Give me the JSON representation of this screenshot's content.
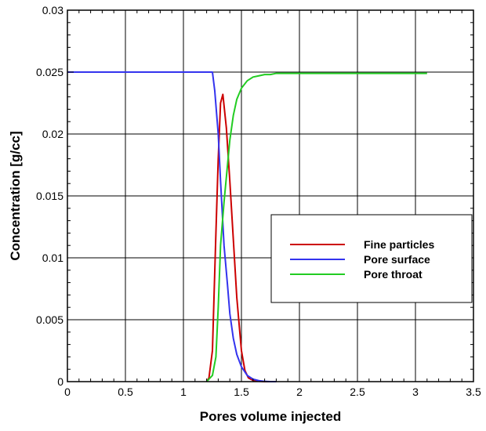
{
  "chart_data": {
    "type": "line",
    "xlabel": "Pores volume injected",
    "ylabel": "Concentration [g/cc]",
    "xlim": [
      0,
      3.5
    ],
    "ylim": [
      0,
      0.03
    ],
    "x_ticks": [
      "0",
      "0.5",
      "1",
      "1.5",
      "2",
      "2.5",
      "3",
      "3.5"
    ],
    "y_ticks": [
      "0",
      "0.005",
      "0.01",
      "0.015",
      "0.02",
      "0.025",
      "0.03"
    ],
    "grid": true,
    "legend_position": "middle-right",
    "series": [
      {
        "name": "Fine particles",
        "color": "#cc0000",
        "x": [
          1.2,
          1.22,
          1.25,
          1.28,
          1.3,
          1.32,
          1.34,
          1.37,
          1.4,
          1.43,
          1.46,
          1.5,
          1.53,
          1.56,
          1.6,
          1.65,
          1.7,
          1.75,
          1.8
        ],
        "y": [
          0,
          0.0003,
          0.0025,
          0.012,
          0.018,
          0.0225,
          0.0232,
          0.0205,
          0.0162,
          0.0115,
          0.0068,
          0.0025,
          0.0009,
          0.0003,
          0.0001,
          3e-05,
          0,
          0,
          0
        ]
      },
      {
        "name": "Pore surface",
        "color": "#3333ee",
        "x": [
          0,
          0.5,
          1.0,
          1.22,
          1.25,
          1.27,
          1.3,
          1.32,
          1.35,
          1.38,
          1.4,
          1.43,
          1.46,
          1.5,
          1.55,
          1.6,
          1.65,
          1.7,
          1.75,
          1.8
        ],
        "y": [
          0.025,
          0.025,
          0.025,
          0.025,
          0.025,
          0.0235,
          0.02,
          0.0162,
          0.011,
          0.0078,
          0.0055,
          0.0035,
          0.0022,
          0.0012,
          0.0005,
          0.0002,
          8e-05,
          2e-05,
          0,
          0
        ]
      },
      {
        "name": "Pore throat",
        "color": "#22cc22",
        "x": [
          1.2,
          1.25,
          1.28,
          1.3,
          1.32,
          1.35,
          1.38,
          1.4,
          1.43,
          1.46,
          1.5,
          1.55,
          1.6,
          1.65,
          1.7,
          1.75,
          1.8,
          1.9,
          2.0,
          2.5,
          3.0,
          3.1
        ],
        "y": [
          0,
          0.0005,
          0.002,
          0.006,
          0.011,
          0.0145,
          0.0175,
          0.0195,
          0.0215,
          0.0228,
          0.0237,
          0.0243,
          0.0246,
          0.0247,
          0.0248,
          0.0248,
          0.0249,
          0.0249,
          0.0249,
          0.0249,
          0.0249,
          0.0249
        ]
      }
    ]
  }
}
